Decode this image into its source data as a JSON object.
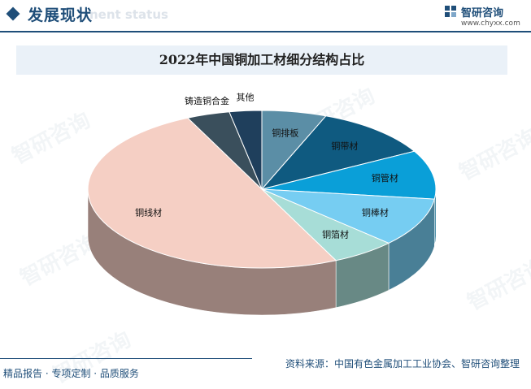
{
  "header": {
    "title": "发展现状",
    "subtitle": "nent status",
    "brand_name": "智研咨询",
    "brand_url": "www.chyxx.com"
  },
  "watermark_text": "智研咨询",
  "footer": {
    "left": "精品报告 · 专项定制 · 品质服务",
    "right": "资料来源：中国有色金属加工工业协会、智研咨询整理"
  },
  "colors": {
    "brand": "#1f4e79"
  },
  "chart_data": {
    "type": "pie",
    "style": "3d",
    "title": "2022年中国铜加工材细分结构占比",
    "labels": [
      "铜排板",
      "铜带材",
      "铜管材",
      "铜棒材",
      "铜箔材",
      "铜线材",
      "铸造铜合金",
      "其他"
    ],
    "values": [
      6.0,
      11.0,
      10.0,
      10.0,
      6.0,
      50.0,
      4.0,
      3.0
    ],
    "colors": [
      "#5b8ea6",
      "#0f5a80",
      "#0a9fd8",
      "#76cdf2",
      "#a7ddd7",
      "#f5cfc4",
      "#3a4f5c",
      "#1f3f5c"
    ],
    "legend": "none",
    "data_labels": "category names"
  }
}
